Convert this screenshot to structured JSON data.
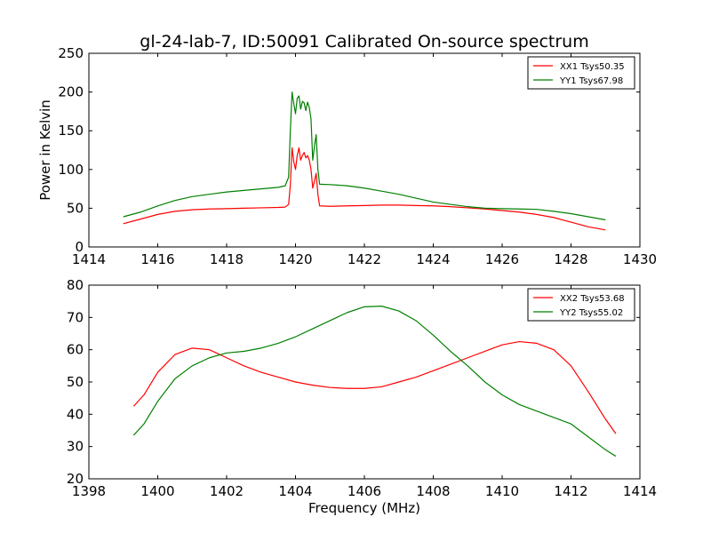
{
  "figure": {
    "title": "gl-24-lab-7, ID:50091 Calibrated On-source spectrum",
    "xlabel": "Frequency (MHz)"
  },
  "chart_data": [
    {
      "type": "line",
      "title": "gl-24-lab-7, ID:50091 Calibrated On-source spectrum",
      "xlabel": "",
      "ylabel": "Power in Kelvin",
      "xlim": [
        1414,
        1430
      ],
      "ylim": [
        0,
        250
      ],
      "xticks": [
        "1414",
        "1416",
        "1418",
        "1420",
        "1422",
        "1424",
        "1426",
        "1428",
        "1430"
      ],
      "yticks": [
        "0",
        "50",
        "100",
        "150",
        "200",
        "250"
      ],
      "grid": false,
      "legend": "top-right",
      "series": [
        {
          "name": "XX1 Tsys50.35",
          "color": "#ff0000",
          "points": [
            [
              1415.0,
              30
            ],
            [
              1415.5,
              36
            ],
            [
              1416.0,
              42
            ],
            [
              1416.5,
              46
            ],
            [
              1417.0,
              48
            ],
            [
              1417.5,
              49
            ],
            [
              1418.0,
              49.5
            ],
            [
              1418.5,
              50
            ],
            [
              1419.0,
              50.5
            ],
            [
              1419.5,
              51
            ],
            [
              1419.7,
              51.5
            ],
            [
              1419.8,
              55
            ],
            [
              1419.85,
              80
            ],
            [
              1419.9,
              128
            ],
            [
              1419.95,
              110
            ],
            [
              1420.0,
              100
            ],
            [
              1420.05,
              118
            ],
            [
              1420.1,
              128
            ],
            [
              1420.15,
              112
            ],
            [
              1420.2,
              118
            ],
            [
              1420.25,
              122
            ],
            [
              1420.3,
              115
            ],
            [
              1420.35,
              118
            ],
            [
              1420.4,
              112
            ],
            [
              1420.45,
              100
            ],
            [
              1420.5,
              76
            ],
            [
              1420.55,
              85
            ],
            [
              1420.6,
              95
            ],
            [
              1420.65,
              68
            ],
            [
              1420.7,
              53
            ],
            [
              1421.0,
              52.5
            ],
            [
              1421.5,
              53
            ],
            [
              1422.0,
              53.5
            ],
            [
              1422.5,
              54
            ],
            [
              1423.0,
              54
            ],
            [
              1423.5,
              53.5
            ],
            [
              1424.0,
              53
            ],
            [
              1424.5,
              52
            ],
            [
              1425.0,
              50.5
            ],
            [
              1425.5,
              49
            ],
            [
              1426.0,
              47
            ],
            [
              1426.5,
              45
            ],
            [
              1427.0,
              42
            ],
            [
              1427.5,
              38
            ],
            [
              1428.0,
              32
            ],
            [
              1428.5,
              26
            ],
            [
              1429.0,
              22
            ]
          ]
        },
        {
          "name": "YY1 Tsys67.98",
          "color": "#008000",
          "points": [
            [
              1415.0,
              39
            ],
            [
              1415.5,
              45
            ],
            [
              1416.0,
              53
            ],
            [
              1416.5,
              60
            ],
            [
              1417.0,
              65
            ],
            [
              1417.5,
              68
            ],
            [
              1418.0,
              71
            ],
            [
              1418.5,
              73
            ],
            [
              1419.0,
              75
            ],
            [
              1419.5,
              77
            ],
            [
              1419.7,
              79
            ],
            [
              1419.8,
              90
            ],
            [
              1419.85,
              150
            ],
            [
              1419.9,
              200
            ],
            [
              1419.95,
              185
            ],
            [
              1420.0,
              172
            ],
            [
              1420.05,
              192
            ],
            [
              1420.1,
              195
            ],
            [
              1420.15,
              178
            ],
            [
              1420.2,
              188
            ],
            [
              1420.25,
              186
            ],
            [
              1420.3,
              176
            ],
            [
              1420.35,
              187
            ],
            [
              1420.4,
              180
            ],
            [
              1420.45,
              165
            ],
            [
              1420.5,
              112
            ],
            [
              1420.55,
              130
            ],
            [
              1420.6,
              145
            ],
            [
              1420.65,
              100
            ],
            [
              1420.7,
              81
            ],
            [
              1421.0,
              80.5
            ],
            [
              1421.5,
              79
            ],
            [
              1422.0,
              76
            ],
            [
              1422.5,
              72
            ],
            [
              1423.0,
              68
            ],
            [
              1423.5,
              63
            ],
            [
              1424.0,
              58
            ],
            [
              1424.5,
              55
            ],
            [
              1425.0,
              52
            ],
            [
              1425.5,
              50
            ],
            [
              1426.0,
              49.5
            ],
            [
              1426.5,
              49
            ],
            [
              1427.0,
              48.5
            ],
            [
              1427.5,
              46
            ],
            [
              1428.0,
              43
            ],
            [
              1428.5,
              39
            ],
            [
              1429.0,
              35
            ]
          ]
        }
      ]
    },
    {
      "type": "line",
      "title": "",
      "xlabel": "Frequency (MHz)",
      "ylabel": "",
      "xlim": [
        1398,
        1414
      ],
      "ylim": [
        20,
        80
      ],
      "xticks": [
        "1398",
        "1400",
        "1402",
        "1404",
        "1406",
        "1408",
        "1410",
        "1412",
        "1414"
      ],
      "yticks": [
        "20",
        "30",
        "40",
        "50",
        "60",
        "70",
        "80"
      ],
      "grid": false,
      "legend": "top-right",
      "series": [
        {
          "name": "XX2 Tsys53.68",
          "color": "#ff0000",
          "points": [
            [
              1399.3,
              42.5
            ],
            [
              1399.6,
              46
            ],
            [
              1400.0,
              53
            ],
            [
              1400.5,
              58.5
            ],
            [
              1401.0,
              60.5
            ],
            [
              1401.5,
              60
            ],
            [
              1402.0,
              57.5
            ],
            [
              1402.5,
              55
            ],
            [
              1403.0,
              53
            ],
            [
              1403.5,
              51.5
            ],
            [
              1404.0,
              50
            ],
            [
              1404.5,
              49
            ],
            [
              1405.0,
              48.3
            ],
            [
              1405.5,
              48
            ],
            [
              1406.0,
              48
            ],
            [
              1406.5,
              48.5
            ],
            [
              1407.0,
              50
            ],
            [
              1407.5,
              51.5
            ],
            [
              1408.0,
              53.5
            ],
            [
              1408.5,
              55.5
            ],
            [
              1409.0,
              57.5
            ],
            [
              1409.5,
              59.5
            ],
            [
              1410.0,
              61.5
            ],
            [
              1410.5,
              62.5
            ],
            [
              1411.0,
              62
            ],
            [
              1411.5,
              60
            ],
            [
              1412.0,
              55
            ],
            [
              1412.5,
              47
            ],
            [
              1413.0,
              38.5
            ],
            [
              1413.3,
              34
            ]
          ]
        },
        {
          "name": "YY2 Tsys55.02",
          "color": "#008000",
          "points": [
            [
              1399.3,
              33.5
            ],
            [
              1399.6,
              37
            ],
            [
              1400.0,
              44
            ],
            [
              1400.5,
              51
            ],
            [
              1401.0,
              55
            ],
            [
              1401.5,
              57.5
            ],
            [
              1402.0,
              59
            ],
            [
              1402.5,
              59.5
            ],
            [
              1403.0,
              60.5
            ],
            [
              1403.5,
              62
            ],
            [
              1404.0,
              64
            ],
            [
              1404.5,
              66.5
            ],
            [
              1405.0,
              69
            ],
            [
              1405.5,
              71.5
            ],
            [
              1406.0,
              73.3
            ],
            [
              1406.5,
              73.5
            ],
            [
              1407.0,
              72
            ],
            [
              1407.5,
              69
            ],
            [
              1408.0,
              64.5
            ],
            [
              1408.5,
              59.5
            ],
            [
              1409.0,
              55
            ],
            [
              1409.5,
              50
            ],
            [
              1410.0,
              46
            ],
            [
              1410.5,
              43
            ],
            [
              1411.0,
              41
            ],
            [
              1411.5,
              39
            ],
            [
              1412.0,
              37
            ],
            [
              1412.5,
              33
            ],
            [
              1413.0,
              29
            ],
            [
              1413.3,
              27
            ]
          ]
        }
      ]
    }
  ]
}
